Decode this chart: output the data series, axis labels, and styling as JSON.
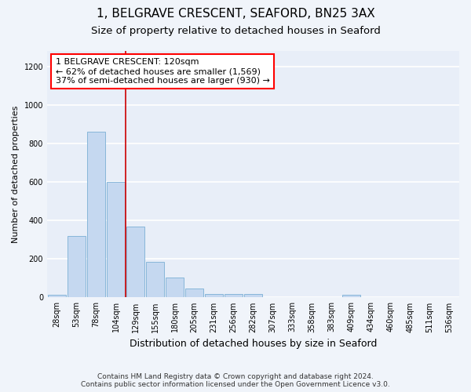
{
  "title": "1, BELGRAVE CRESCENT, SEAFORD, BN25 3AX",
  "subtitle": "Size of property relative to detached houses in Seaford",
  "xlabel": "Distribution of detached houses by size in Seaford",
  "ylabel": "Number of detached properties",
  "bar_color": "#c5d8f0",
  "bar_edge_color": "#7aafd4",
  "vline_color": "#cc0000",
  "vline_x": 3.5,
  "categories": [
    "28sqm",
    "53sqm",
    "78sqm",
    "104sqm",
    "129sqm",
    "155sqm",
    "180sqm",
    "205sqm",
    "231sqm",
    "256sqm",
    "282sqm",
    "307sqm",
    "333sqm",
    "358sqm",
    "383sqm",
    "409sqm",
    "434sqm",
    "460sqm",
    "485sqm",
    "511sqm",
    "536sqm"
  ],
  "values": [
    12,
    320,
    860,
    600,
    370,
    185,
    105,
    45,
    20,
    20,
    20,
    0,
    0,
    0,
    0,
    12,
    0,
    0,
    0,
    0,
    0
  ],
  "ylim": [
    0,
    1280
  ],
  "yticks": [
    0,
    200,
    400,
    600,
    800,
    1000,
    1200
  ],
  "annotation_text": "1 BELGRAVE CRESCENT: 120sqm\n← 62% of detached houses are smaller (1,569)\n37% of semi-detached houses are larger (930) →",
  "fig_bg_color": "#f0f4fa",
  "ax_bg_color": "#e8eef8",
  "grid_color": "#ffffff",
  "footer_line1": "Contains HM Land Registry data © Crown copyright and database right 2024.",
  "footer_line2": "Contains public sector information licensed under the Open Government Licence v3.0.",
  "title_fontsize": 11,
  "subtitle_fontsize": 9.5,
  "xlabel_fontsize": 9,
  "ylabel_fontsize": 8,
  "tick_fontsize": 7,
  "annotation_fontsize": 8,
  "footer_fontsize": 6.5
}
